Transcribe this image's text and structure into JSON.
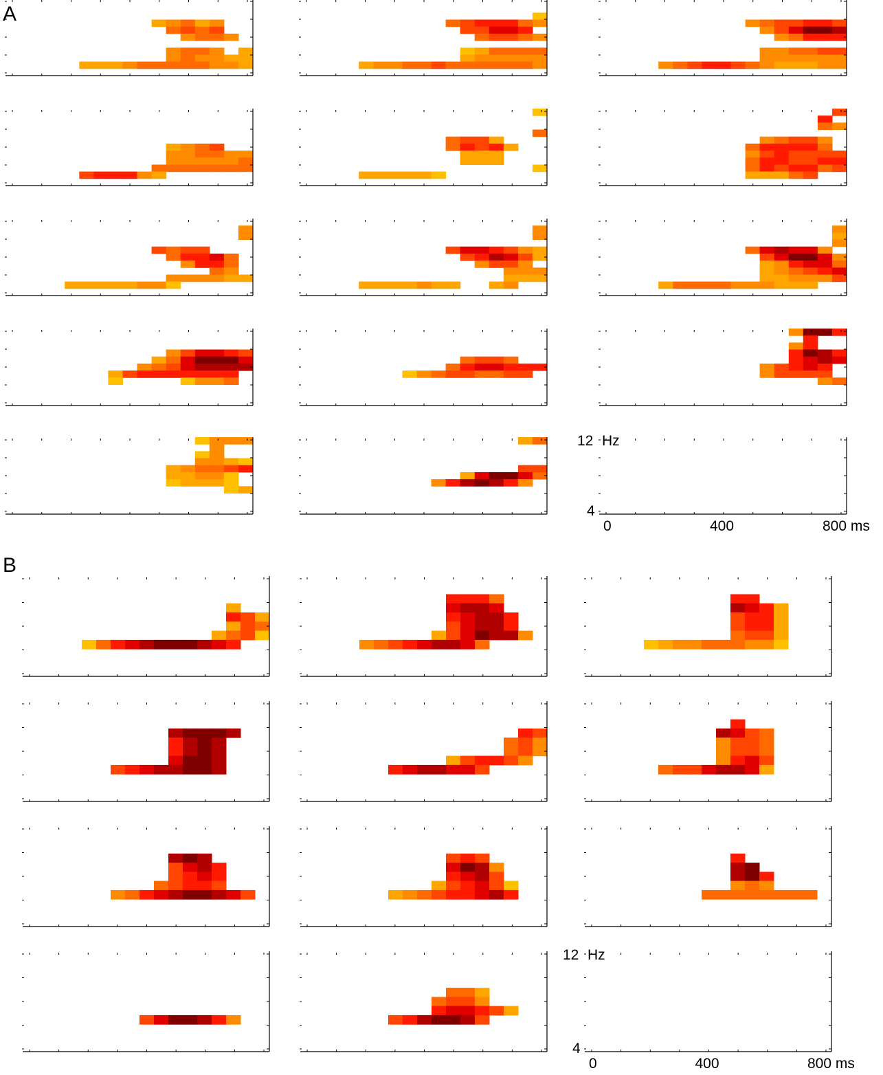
{
  "chart_data": {
    "type": "heatmap",
    "title": "",
    "xlabel": "ms",
    "ylabel": "Hz",
    "x_range": [
      0,
      800
    ],
    "y_range": [
      4,
      12
    ],
    "x_tick_labels": [
      "0",
      "400",
      "800 ms"
    ],
    "y_tick_labels": [
      "12 Hz",
      "4"
    ],
    "color_scale": {
      "description": "intensity levels 1 (yellow-orange) to 9 (dark red); '.' = no significant value",
      "colors": [
        "#ffc000",
        "#ffa500",
        "#ff8c00",
        "#ff6a00",
        "#ff4500",
        "#ff1a00",
        "#e00000",
        "#b00000",
        "#800000"
      ]
    },
    "n_time_bins": 17,
    "n_freq_rows": 11,
    "sections": [
      {
        "label": "A",
        "axis_panel_index": 14,
        "panels": [
          {
            "rows": [
              "................",
              ".................",
              ".................",
              "..........23423..",
              "...........4545..",
              "............3443.",
              ".................",
              "...........3443.2",
              "...........3433221",
              ".....222344444332.",
              "................."
            ]
          },
          {
            "rows": [
              ".................",
              ".................",
              "................1",
              "..........45666431",
              "...........55776.",
              "............455433",
              ".................",
              "...........1244444",
              "...........2333333",
              "....23344544444433.",
              "................."
            ]
          },
          {
            "rows": [
              ".................",
              ".................",
              ".................",
              "..........3455665 2",
              "...........357998 63",
              "............3466665",
              ".................",
              "...........3344555 6",
              "...........3333334",
              "....34566543222334.",
              "................."
            ]
          },
          {
            "rows": [
              ".................",
              ".................",
              ".................",
              ".................",
              ".................",
              "...........2345...",
              "...........334433",
              "...........333334",
              "..........4444444",
              ".....56663 2......",
              "................."
            ]
          },
          {
            "rows": [
              "................1",
              ".................",
              ".................",
              "................4",
              "..........455 2...",
              "..........4656 2..",
              "...........22 2...",
              "...........222....",
              "................1",
              "....222221........",
              "................."
            ]
          },
          {
            "rows": [
              "................5",
              "...............6.",
              "...............43",
              ".................",
              "...........3455 3.",
              "..........466664..",
              "..........3565555",
              "..........4665566",
              "..........4656645",
              "..........22245...",
              "................."
            ]
          },
          {
            "rows": [
              ".................",
              "................3",
              "................3",
              ".................",
              "..........5 4 5 5.",
              "...........4667 4.",
              "............3 6 6 4.",
              "..............4 3.",
              "...........33 3322",
              "....2222233 1......",
              "................."
            ]
          },
          {
            "rows": [
              ".................",
              "................3",
              "................3",
              ".................",
              "..........577 6 5 32.",
              "...........56 8 7 5 2",
              "............3 5 5 3..",
              "..............3 3 3..",
              "..............2222 3",
              "....2 2 2 2 3 2 2..2 3.",
              "................."
            ]
          },
          {
            "rows": [
              ".................",
              "................3",
              "................2",
              "................3",
              "..........47 8 7 7 3",
              "...........5 7 9 9 7 3",
              "...........2 3 6 7 7 4",
              "...........2 3 4 5 6 7",
              "...........2 2 3 3 3 5 7",
              "....2 4 4 4 4 3 3 3 2 2 2",
              "................."
            ]
          },
          {
            "rows": [
              ".................",
              ".................",
              ".................",
              "...........3 5 7 7 6 5",
              "..........2 4 7 9 9 9 7",
              ".........3 4 5 7 8 8 8 8",
              ".......2 5 6 6 6 6 6 6 6",
              ".......1 . . . . 1 3 3 4",
              ".................",
              ".................",
              "................."
            ]
          },
          {
            "rows": [
              ".................",
              ".................",
              ".................",
              ".................",
              "...........4 5 5 4 .",
              "..........4 6 7 7 6 6 6",
              ".......1 3 4 5 5 4 4 5 5",
              ".................",
              ".................",
              ".................",
              "................."
            ]
          },
          {
            "rows": [
              ".............3 9 9 6 6 7",
              "..............6 . . . 7",
              ".............3 6 . . . 8",
              ".............6 9 8 6 5 8",
              ".............6 7 8 7 7 9",
              "...........3 5 6 7 6 . 8",
              "...........3 5 5 5 5 . .",
              "...............3 4 5",
              ".................",
              ".................",
              "................."
            ]
          },
          {
            "rows": [
              ".............1 3 3 3 4 6",
              "..............3 . . . 5",
              ".............1 3 . . . 7",
              ".............3 3 2 1 4 7",
              "...........2 3 4 4 5 6 7",
              "...........2 2 3 3 1 . 2",
              "...........1 2 2 2 1 . .",
              "...............1 2 2",
              ".................",
              ".................",
              "................."
            ]
          },
          {
            "rows": [
              "...............2 4",
              ".................",
              ".................",
              ".................",
              "...............5 5 5 3 .",
              "...........2 7 9 9 7 4 3 3",
              ".........3 6 8 9 8 6 3",
              ".................",
              ".................",
              ".................",
              "................."
            ]
          },
          {
            "rows": [
              ".................",
              ".................",
              ".................",
              ".................",
              ".................",
              ".................",
              ".................",
              ".................",
              ".................",
              ".................",
              "................."
            ]
          }
        ]
      },
      {
        "label": "B",
        "axis_panel_index": 11,
        "panels": [
          {
            "rows": [
              ".................",
              ".................",
              ".................",
              "..............2..",
              "..............6 5 2",
              "..............2 5 4",
              ".............2 4 5 1",
              "....1 4 6 7 8 9 9 9 8 7 6",
              ".................",
              ".................",
              "................."
            ]
          },
          {
            "rows": [
              ".................",
              ".................",
              "..........6 6 6 4",
              "..........7 8 8 7",
              "..........6 7 8 8 6",
              "..........5 7 8 8 6",
              ".........2 5 7 9 8 8 3",
              "....3 4 5 6 7 8 8 7 4",
              ".................",
              ".................",
              "................."
            ]
          },
          {
            "rows": [
              ".................",
              ".................",
              "..........6 6",
              "..........8 7 6 2",
              "..........5 6 6 2",
              "..........5 6 6 2",
              "..........4 5 5 2",
              "....1 2 3 3 4 4 4 3 3 1",
              ".................",
              ".................",
              "................."
            ]
          },
          {
            "rows": [
              ".................",
              ".................",
              ".................",
              "..........8 9 9 9 8",
              "..........6 8 9 8",
              "..........6 8 9 8",
              "..........7 9 9 8",
              "......5 6 7 8 8 9 9 8",
              ".................",
              ".................",
              "................."
            ]
          },
          {
            "rows": [
              ".................",
              ".................",
              ".................",
              "...............6 5",
              "..............4 5 3",
              "..............4 5 3",
              "..........2 5 6 6 5 3",
              "......6 7 8 8 7 7 5",
              ".................",
              ".................",
              "................."
            ]
          },
          {
            "rows": [
              ".................",
              ".................",
              "..........6",
              ".........8 7 5 4",
              ".........3 5 5 4",
              ".........3 5 5 4",
              ".........3 6 7 5",
              ".....4 5 5 7 8 8 7 2",
              ".................",
              ".................",
              "................."
            ]
          },
          {
            "rows": [
              ".................",
              ".................",
              ".................",
              "..........8 9 8",
              "..........5 7 8 6",
              "..........5 6 7 6",
              ".........4 5 6 6 5",
              "......3 4 6 7 8 9 9 8 7 5",
              ".................",
              ".................",
              "................."
            ]
          },
          {
            "rows": [
              ".................",
              ".................",
              ".................",
              "..........5 6 5",
              "..........7 9 8 3",
              "..........6 7 8 5",
              ".........2 5 6 7 5 1",
              "......2 3 4 5 6 6 7 8 6",
              ".................",
              ".................",
              "................."
            ]
          },
          {
            "rows": [
              ".................",
              ".................",
              ".................",
              "..........6",
              "..........8 9",
              "..........8 9 6",
              "..........3 4 3",
              "........4 4 4 4 4 4 4 4",
              ".................",
              ".................",
              "................."
            ]
          },
          {
            "rows": [
              ".................",
              ".................",
              ".................",
              ".................",
              ".................",
              ".................",
              ".................",
              "........5 7 9 9 8 6 3",
              ".................",
              ".................",
              "................."
            ]
          },
          {
            "rows": [
              ".................",
              ".................",
              ".................",
              ".................",
              "..........4 4 2",
              ".........4 5 5 3",
              ".........6 7 7 6 5 2",
              "......5 6 8 9 9 8 5",
              ".................",
              ".................",
              "................."
            ]
          },
          {
            "rows": [
              ".................",
              ".................",
              ".................",
              ".................",
              ".................",
              ".................",
              ".................",
              ".................",
              ".................",
              ".................",
              "................."
            ]
          }
        ]
      }
    ]
  }
}
